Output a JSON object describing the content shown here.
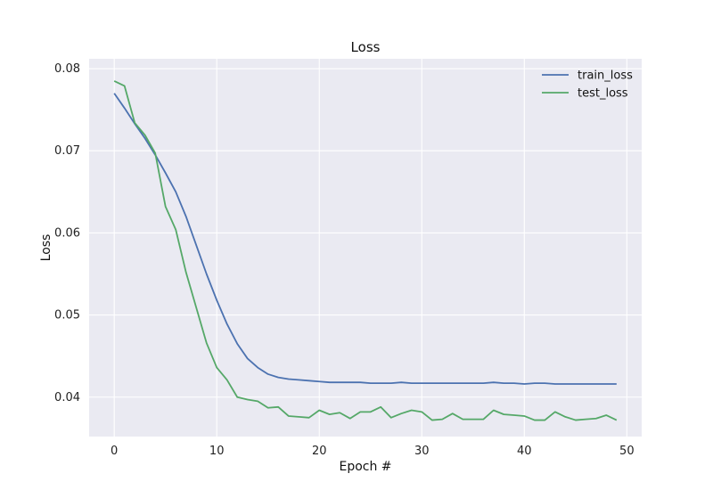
{
  "chart_data": {
    "type": "line",
    "title": "Loss",
    "xlabel": "Epoch #",
    "ylabel": "Loss",
    "xlim": [
      -2.45,
      51.45
    ],
    "ylim": [
      0.0352,
      0.0812
    ],
    "xticks": [
      0,
      10,
      20,
      30,
      40,
      50
    ],
    "yticks": [
      0.04,
      0.05,
      0.06,
      0.07,
      0.08
    ],
    "ytick_labels": [
      "0.04",
      "0.05",
      "0.06",
      "0.07",
      "0.08"
    ],
    "grid": true,
    "legend_position": "top-right",
    "x": [
      0,
      1,
      2,
      3,
      4,
      5,
      6,
      7,
      8,
      9,
      10,
      11,
      12,
      13,
      14,
      15,
      16,
      17,
      18,
      19,
      20,
      21,
      22,
      23,
      24,
      25,
      26,
      27,
      28,
      29,
      30,
      31,
      32,
      33,
      34,
      35,
      36,
      37,
      38,
      39,
      40,
      41,
      42,
      43,
      44,
      45,
      46,
      47,
      48,
      49
    ],
    "series": [
      {
        "name": "train_loss",
        "color": "#4c72b0",
        "values": [
          0.077,
          0.0752,
          0.0733,
          0.0715,
          0.0695,
          0.0673,
          0.065,
          0.062,
          0.0585,
          0.055,
          0.0518,
          0.0489,
          0.0465,
          0.0447,
          0.0436,
          0.0428,
          0.0424,
          0.0422,
          0.0421,
          0.042,
          0.0419,
          0.0418,
          0.0418,
          0.0418,
          0.0418,
          0.0417,
          0.0417,
          0.0417,
          0.0418,
          0.0417,
          0.0417,
          0.0417,
          0.0417,
          0.0417,
          0.0417,
          0.0417,
          0.0417,
          0.0418,
          0.0417,
          0.0417,
          0.0416,
          0.0417,
          0.0417,
          0.0416,
          0.0416,
          0.0416,
          0.0416,
          0.0416,
          0.0416,
          0.0416
        ]
      },
      {
        "name": "test_loss",
        "color": "#55a868",
        "values": [
          0.0785,
          0.0779,
          0.0734,
          0.0719,
          0.0697,
          0.0632,
          0.0604,
          0.0552,
          0.0509,
          0.0466,
          0.0436,
          0.0421,
          0.04,
          0.0397,
          0.0395,
          0.0387,
          0.0388,
          0.0377,
          0.0376,
          0.0375,
          0.0384,
          0.0379,
          0.0381,
          0.0374,
          0.0382,
          0.0382,
          0.0388,
          0.0375,
          0.038,
          0.0384,
          0.0382,
          0.0372,
          0.0373,
          0.038,
          0.0373,
          0.0373,
          0.0373,
          0.0384,
          0.0379,
          0.0378,
          0.0377,
          0.0372,
          0.0372,
          0.0382,
          0.0376,
          0.0372,
          0.0373,
          0.0374,
          0.0378,
          0.0372
        ]
      }
    ]
  }
}
